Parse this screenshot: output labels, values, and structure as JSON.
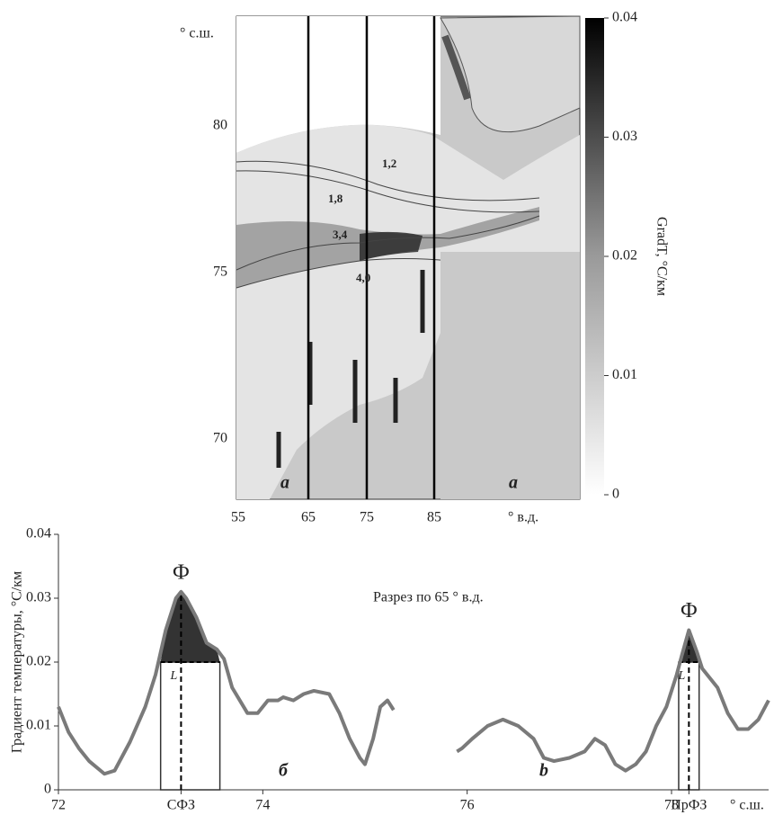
{
  "map": {
    "lat_label": "° с.ш.",
    "lon_label": "° в.д.",
    "lat_ticks": [
      80,
      75,
      70
    ],
    "lon_ticks": [
      55,
      65,
      75,
      85
    ],
    "contour_labels": [
      "1,2",
      "1,8",
      "3,4",
      "4,0"
    ],
    "panel_labels": [
      "a",
      "a"
    ],
    "colorbar": {
      "label": "GradT, °C/км",
      "lim": [
        0,
        0.04
      ],
      "ticks": [
        0,
        0.01,
        0.02,
        0.03,
        0.04
      ]
    }
  },
  "chart_data": {
    "type": "line",
    "x": [
      72.0,
      72.1,
      72.2,
      72.3,
      72.45,
      72.55,
      72.7,
      72.85,
      72.95,
      73.05,
      73.15,
      73.2,
      73.25,
      73.35,
      73.45,
      73.55,
      73.62,
      73.7,
      73.85,
      73.95,
      74.05,
      74.15,
      74.2,
      74.3,
      74.4,
      74.5,
      74.65,
      74.75,
      74.85,
      74.95,
      75.0,
      75.08,
      75.15,
      75.22,
      75.28,
      75.6,
      75.9,
      75.95,
      76.05,
      76.2,
      76.35,
      76.5,
      76.65,
      76.75,
      76.85,
      77.0,
      77.15,
      77.25,
      77.35,
      77.45,
      77.55,
      77.65,
      77.75,
      77.85,
      77.95,
      78.05,
      78.1,
      78.17,
      78.25,
      78.3,
      78.45,
      78.55,
      78.65,
      78.75,
      78.85,
      78.95
    ],
    "series": [
      {
        "color": "#7a7a7a",
        "values": [
          0.013,
          0.009,
          0.0065,
          0.0045,
          0.0025,
          0.003,
          0.0075,
          0.013,
          0.018,
          0.025,
          0.03,
          0.031,
          0.03,
          0.027,
          0.023,
          0.022,
          0.0205,
          0.016,
          0.012,
          0.012,
          0.014,
          0.014,
          0.0145,
          0.014,
          0.015,
          0.0155,
          0.015,
          0.012,
          0.008,
          0.005,
          0.004,
          0.008,
          0.013,
          0.014,
          0.0125,
          null,
          0.006,
          0.0065,
          0.008,
          0.01,
          0.011,
          0.01,
          0.008,
          0.005,
          0.0045,
          0.005,
          0.006,
          0.008,
          0.007,
          0.004,
          0.003,
          0.004,
          0.006,
          0.01,
          0.013,
          0.018,
          0.021,
          0.025,
          0.0215,
          0.019,
          0.016,
          0.012,
          0.0095,
          0.0095,
          0.011,
          0.014
        ]
      }
    ],
    "xlim": [
      72,
      78.95
    ],
    "ylim": [
      0,
      0.04
    ],
    "xticks": [
      72,
      {
        "value": 73.2,
        "label": "СФЗ"
      },
      74,
      76,
      78,
      {
        "value": 78.17,
        "label": "ПрФЗ"
      }
    ],
    "yticks": [
      0,
      0.01,
      0.02,
      0.03,
      0.04
    ],
    "x_label": "° с.ш.",
    "y_label": "Градиент температуры, °С/км",
    "annotation": "Разрез по 65 ° в.д.",
    "panel_labels": [
      "б",
      "b"
    ],
    "fronts": [
      {
        "start": 73.0,
        "end": 73.58,
        "peak": 73.2,
        "level": 0.02,
        "label": "Ф",
        "width_label": "L"
      },
      {
        "start": 78.07,
        "end": 78.27,
        "peak": 78.17,
        "level": 0.02,
        "label": "Ф",
        "width_label": "L"
      }
    ]
  }
}
